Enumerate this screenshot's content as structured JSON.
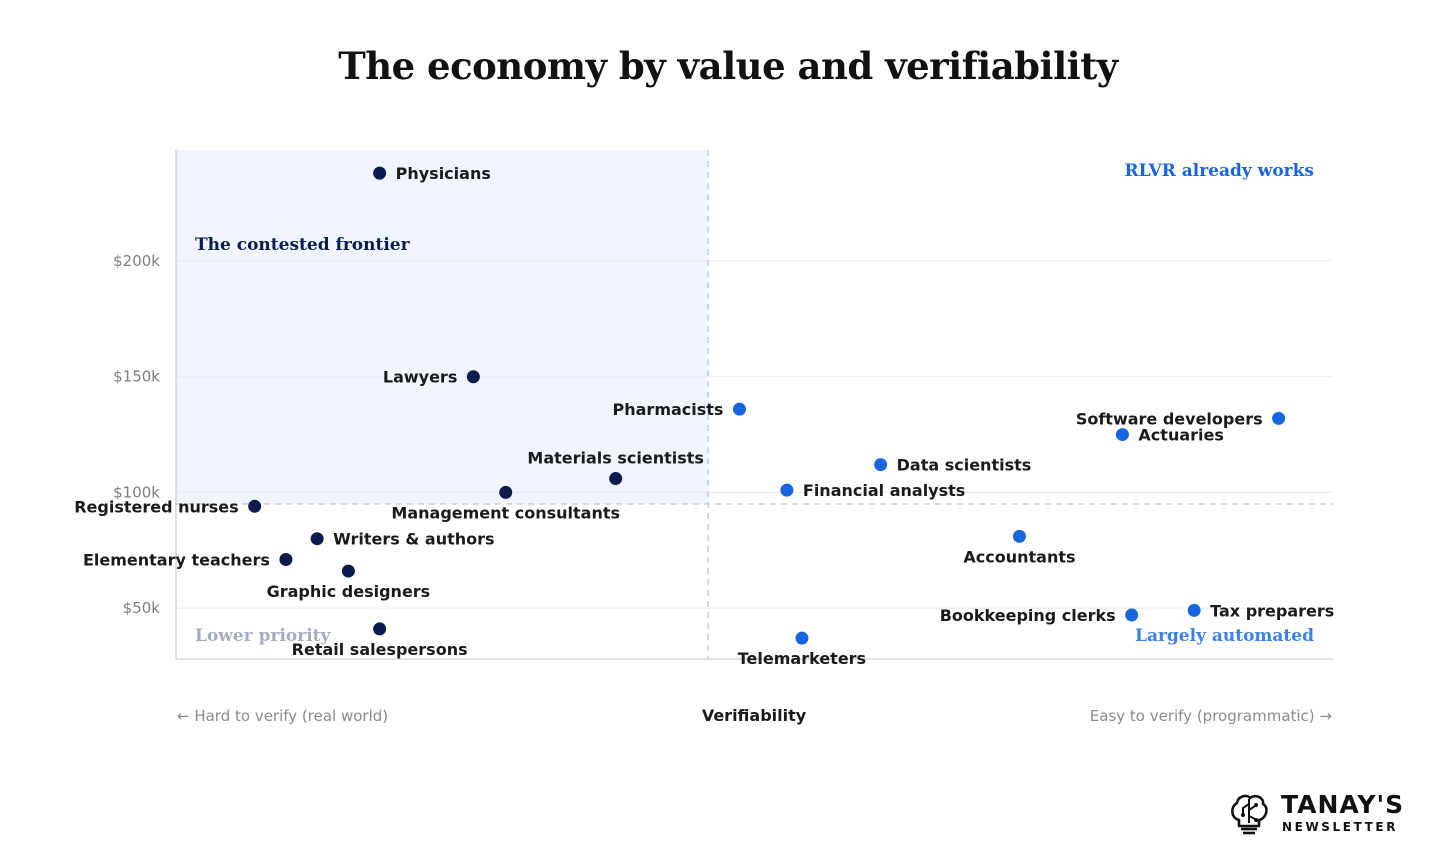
{
  "title": "The economy by value and verifiability",
  "brand": {
    "name": "TANAY'S",
    "subtitle": "NEWSLETTER"
  },
  "chart_data": {
    "type": "scatter",
    "title": "The economy by value and verifiability",
    "xlabel": "Verifiability",
    "x_axis_left_label": "← Hard to verify (real world)",
    "x_axis_right_label": "Easy to verify (programmatic) →",
    "ylabel": "",
    "y_ticks": [
      {
        "value": 50,
        "label": "$50k"
      },
      {
        "value": 100,
        "label": "$100k"
      },
      {
        "value": 150,
        "label": "$150k"
      },
      {
        "value": 200,
        "label": "$200k"
      }
    ],
    "ylim": [
      28,
      248
    ],
    "xlim": [
      0,
      100
    ],
    "grid": "horizontal",
    "thresholds": {
      "x": 46,
      "y": 95
    },
    "quadrants": [
      {
        "label": "The contested frontier",
        "position": "top-left",
        "color": "#0d1b4f",
        "shaded": true
      },
      {
        "label": "RLVR already works",
        "position": "top-right",
        "color": "#1766e0"
      },
      {
        "label": "Lower priority",
        "position": "bottom-left",
        "color": "#a4adbf"
      },
      {
        "label": "Largely automated",
        "position": "bottom-right",
        "color": "#3d7fe8"
      }
    ],
    "colors": {
      "hard": "#0d1b4f",
      "easy": "#1766e0"
    },
    "points": [
      {
        "label": "Physicians",
        "x": 17.6,
        "y": 238,
        "group": "hard",
        "label_side": "right"
      },
      {
        "label": "Lawyers",
        "x": 25.7,
        "y": 150,
        "group": "hard",
        "label_side": "left"
      },
      {
        "label": "Materials scientists",
        "x": 38.0,
        "y": 106,
        "group": "hard",
        "label_side": "above"
      },
      {
        "label": "Management consultants",
        "x": 28.5,
        "y": 100,
        "group": "hard",
        "label_side": "below"
      },
      {
        "label": "Registered nurses",
        "x": 6.8,
        "y": 94,
        "group": "hard",
        "label_side": "left"
      },
      {
        "label": "Writers & authors",
        "x": 12.2,
        "y": 80,
        "group": "hard",
        "label_side": "right"
      },
      {
        "label": "Elementary teachers",
        "x": 9.5,
        "y": 71,
        "group": "hard",
        "label_side": "left"
      },
      {
        "label": "Graphic designers",
        "x": 14.9,
        "y": 66,
        "group": "hard",
        "label_side": "below"
      },
      {
        "label": "Retail salespersons",
        "x": 17.6,
        "y": 41,
        "group": "hard",
        "label_side": "below"
      },
      {
        "label": "Pharmacists",
        "x": 48.7,
        "y": 136,
        "group": "easy",
        "label_side": "left"
      },
      {
        "label": "Software developers",
        "x": 95.3,
        "y": 132,
        "group": "easy",
        "label_side": "left"
      },
      {
        "label": "Actuaries",
        "x": 81.8,
        "y": 125,
        "group": "easy",
        "label_side": "right"
      },
      {
        "label": "Data scientists",
        "x": 60.9,
        "y": 112,
        "group": "easy",
        "label_side": "right"
      },
      {
        "label": "Financial analysts",
        "x": 52.8,
        "y": 101,
        "group": "easy",
        "label_side": "right"
      },
      {
        "label": "Accountants",
        "x": 72.9,
        "y": 81,
        "group": "easy",
        "label_side": "below"
      },
      {
        "label": "Tax preparers",
        "x": 88.0,
        "y": 49,
        "group": "easy",
        "label_side": "right"
      },
      {
        "label": "Bookkeeping clerks",
        "x": 82.6,
        "y": 47,
        "group": "easy",
        "label_side": "left"
      },
      {
        "label": "Telemarketers",
        "x": 54.1,
        "y": 37,
        "group": "easy",
        "label_side": "below"
      }
    ]
  }
}
